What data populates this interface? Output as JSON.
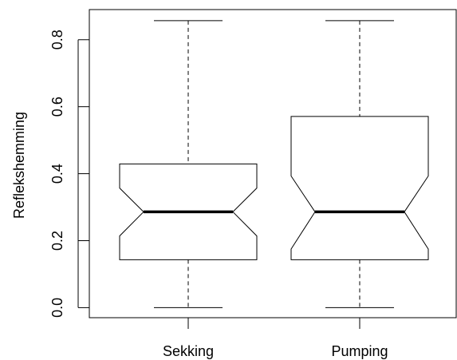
{
  "chart_data": {
    "type": "boxplot",
    "title": "",
    "xlabel": "",
    "ylabel": "Reflekshemming",
    "categories": [
      "Sekking",
      "Pumping"
    ],
    "ylim": [
      -0.03,
      0.89
    ],
    "y_ticks": [
      "0.0",
      "0.2",
      "0.4",
      "0.6",
      "0.8"
    ],
    "y_tick_values": [
      0.0,
      0.2,
      0.4,
      0.6,
      0.8
    ],
    "boxes": [
      {
        "name": "Sekking",
        "min": 0.0,
        "q1": 0.143,
        "median": 0.286,
        "q3": 0.429,
        "max": 0.857,
        "notch_low": 0.214,
        "notch_high": 0.357
      },
      {
        "name": "Pumping",
        "min": 0.0,
        "q1": 0.143,
        "median": 0.286,
        "q3": 0.571,
        "max": 0.857,
        "notch_low": 0.175,
        "notch_high": 0.393
      }
    ],
    "notched": true,
    "grid": false
  }
}
